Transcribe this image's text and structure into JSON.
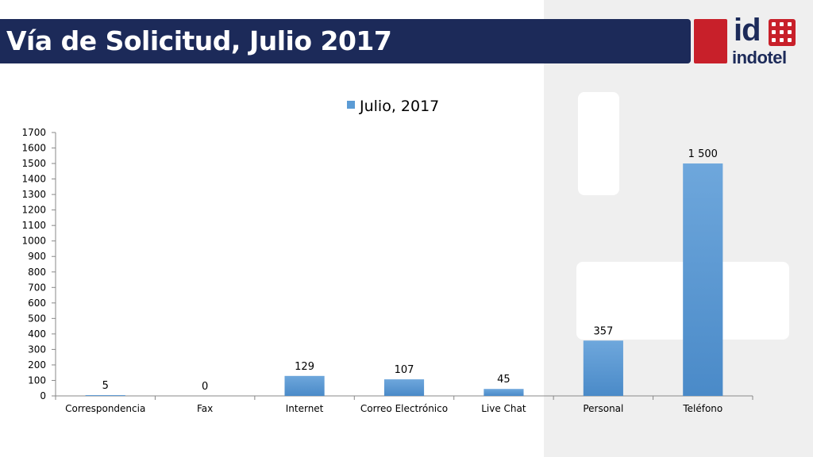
{
  "slide": {
    "title": "Vía de Solicitud, Julio 2017",
    "logo_text": "indotel",
    "logo_mark": "id",
    "colors": {
      "title_bg": "#1c2a59",
      "brand_red": "#c8202a",
      "bar": "#5b9bd5"
    }
  },
  "chart_data": {
    "type": "bar",
    "categories": [
      "Correspondencia",
      "Fax",
      "Internet",
      "Correo Electrónico",
      "Live Chat",
      "Personal",
      "Teléfono"
    ],
    "series": [
      {
        "name": "Julio, 2017",
        "values": [
          5,
          0,
          129,
          107,
          45,
          357,
          1500
        ]
      }
    ],
    "data_labels": [
      "5",
      "0",
      "129",
      "107",
      "45",
      "357",
      "1 500"
    ],
    "yticks": [
      0,
      100,
      200,
      300,
      400,
      500,
      600,
      700,
      800,
      900,
      1000,
      1100,
      1200,
      1300,
      1400,
      1500,
      1600,
      1700
    ],
    "ylim": [
      0,
      1700
    ],
    "legend": "top",
    "grid": false
  }
}
